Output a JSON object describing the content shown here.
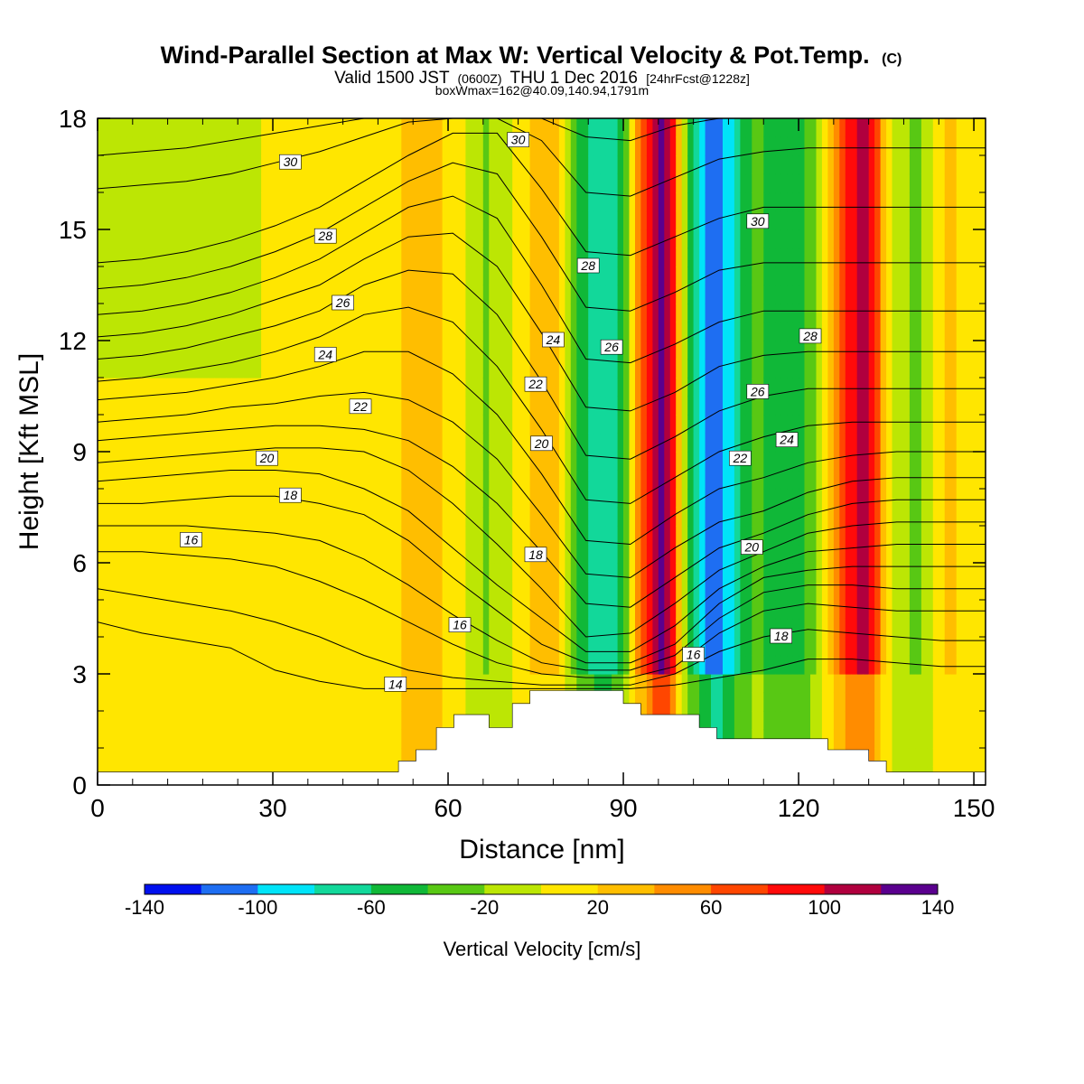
{
  "title": {
    "main": "Wind-Parallel Section at Max W: Vertical Velocity & Pot.Temp.",
    "main_mark": "(C)",
    "valid_prefix": "Valid 1500 JST",
    "valid_z": "(0600Z)",
    "valid_date": "THU 1 Dec 2016",
    "valid_fcst": "[24hrFcst@1228z]",
    "box": "boxWmax=162@40.09,140.94,1791m"
  },
  "chart_data": {
    "type": "heatmap",
    "xlabel": "Distance [nm]",
    "ylabel": "Height [Kft MSL]",
    "xlim": [
      0,
      152
    ],
    "ylim": [
      0,
      18
    ],
    "x_ticks": [
      0,
      30,
      60,
      90,
      120,
      150
    ],
    "y_ticks": [
      0,
      3,
      6,
      9,
      12,
      15,
      18
    ],
    "grid": false,
    "colorbar": {
      "title": "Vertical Velocity [cm/s]",
      "levels": [
        -140,
        -120,
        -100,
        -80,
        -60,
        -40,
        -20,
        0,
        20,
        40,
        60,
        80,
        100,
        120,
        140
      ],
      "tick_labels": [
        "-140",
        "-100",
        "-60",
        "-20",
        "20",
        "60",
        "100",
        "140"
      ],
      "colors": [
        "#0010ee",
        "#1e6ef2",
        "#00e4f8",
        "#12d89a",
        "#10b838",
        "#58c814",
        "#bce604",
        "#ffe600",
        "#ffbe00",
        "#ff8c00",
        "#ff4600",
        "#ff0a0a",
        "#b0003e",
        "#5a008e"
      ]
    },
    "vertical_velocity_columns": [
      {
        "x": 0,
        "w": 5
      },
      {
        "x": 5,
        "w": 5
      },
      {
        "x": 10,
        "w": 6
      },
      {
        "x": 15,
        "w": 5
      },
      {
        "x": 20,
        "w": 5
      },
      {
        "x": 25,
        "w": 4
      },
      {
        "x": 30,
        "w": 3
      },
      {
        "x": 35,
        "w": 2
      },
      {
        "x": 38,
        "w": 12
      },
      {
        "x": 42,
        "w": 5
      },
      {
        "x": 48,
        "w": 8
      },
      {
        "x": 52,
        "w": 20
      },
      {
        "x": 55,
        "w": 30
      },
      {
        "x": 58,
        "w": 22
      },
      {
        "x": 61,
        "w": 12
      },
      {
        "x": 64,
        "w": -5
      },
      {
        "x": 66,
        "w": -25
      },
      {
        "x": 69,
        "w": -10
      },
      {
        "x": 72,
        "w": 5
      },
      {
        "x": 75,
        "w": 25
      },
      {
        "x": 77,
        "w": 40
      },
      {
        "x": 80,
        "w": 5
      },
      {
        "x": 82,
        "w": -40
      },
      {
        "x": 85,
        "w": -75
      },
      {
        "x": 88,
        "w": -80
      },
      {
        "x": 90,
        "w": -40
      },
      {
        "x": 92,
        "w": 30
      },
      {
        "x": 94,
        "w": 80
      },
      {
        "x": 96,
        "w": 130
      },
      {
        "x": 98,
        "w": 105
      },
      {
        "x": 100,
        "w": 10
      },
      {
        "x": 102,
        "w": -60
      },
      {
        "x": 104,
        "w": -100
      },
      {
        "x": 106,
        "w": -125
      },
      {
        "x": 108,
        "w": -90
      },
      {
        "x": 110,
        "w": -55
      },
      {
        "x": 113,
        "w": -30
      },
      {
        "x": 116,
        "w": -55
      },
      {
        "x": 119,
        "w": -60
      },
      {
        "x": 122,
        "w": -35
      },
      {
        "x": 125,
        "w": 10
      },
      {
        "x": 127,
        "w": 60
      },
      {
        "x": 129,
        "w": 95
      },
      {
        "x": 131,
        "w": 110
      },
      {
        "x": 133,
        "w": 75
      },
      {
        "x": 135,
        "w": 20
      },
      {
        "x": 137,
        "w": -10
      },
      {
        "x": 140,
        "w": -30
      },
      {
        "x": 143,
        "w": 5
      },
      {
        "x": 146,
        "w": 25
      },
      {
        "x": 149,
        "w": 10
      },
      {
        "x": 152,
        "w": 5
      }
    ],
    "terrain": [
      {
        "x": 0,
        "h": 0.35
      },
      {
        "x": 51.5,
        "h": 0.35
      },
      {
        "x": 51.5,
        "h": 0.65
      },
      {
        "x": 54.5,
        "h": 0.65
      },
      {
        "x": 54.5,
        "h": 0.95
      },
      {
        "x": 58,
        "h": 0.95
      },
      {
        "x": 58,
        "h": 1.55
      },
      {
        "x": 61,
        "h": 1.55
      },
      {
        "x": 61,
        "h": 1.9
      },
      {
        "x": 67,
        "h": 1.9
      },
      {
        "x": 67,
        "h": 1.55
      },
      {
        "x": 71,
        "h": 1.55
      },
      {
        "x": 71,
        "h": 2.2
      },
      {
        "x": 74,
        "h": 2.2
      },
      {
        "x": 74,
        "h": 2.55
      },
      {
        "x": 90,
        "h": 2.55
      },
      {
        "x": 90,
        "h": 2.2
      },
      {
        "x": 93,
        "h": 2.2
      },
      {
        "x": 93,
        "h": 1.9
      },
      {
        "x": 103,
        "h": 1.9
      },
      {
        "x": 103,
        "h": 1.55
      },
      {
        "x": 106,
        "h": 1.55
      },
      {
        "x": 106,
        "h": 1.25
      },
      {
        "x": 125,
        "h": 1.25
      },
      {
        "x": 125,
        "h": 0.95
      },
      {
        "x": 132,
        "h": 0.95
      },
      {
        "x": 132,
        "h": 0.65
      },
      {
        "x": 135,
        "h": 0.65
      },
      {
        "x": 135,
        "h": 0.35
      },
      {
        "x": 152,
        "h": 0.35
      }
    ],
    "isentropes": [
      {
        "value": 14,
        "heights": [
          4.4,
          4.1,
          3.9,
          3.7,
          3.1,
          2.8,
          2.6,
          2.6,
          2.6,
          2.6,
          2.6,
          2.6,
          2.6,
          2.7,
          2.9,
          3.1,
          3.4,
          3.4,
          3.3,
          3.2,
          3.2
        ],
        "label": "14",
        "lx": 51,
        "ly": 2.7
      },
      {
        "value": 15,
        "heights": [
          5.3,
          5.1,
          4.9,
          4.7,
          4.4,
          4.0,
          3.5,
          3.1,
          2.9,
          2.8,
          2.7,
          2.7,
          2.7,
          3.0,
          3.6,
          4.0,
          4.2,
          4.1,
          4.0,
          3.9,
          3.9
        ]
      },
      {
        "value": 16,
        "heights": [
          6.3,
          6.3,
          6.2,
          6.1,
          5.9,
          5.5,
          5.0,
          4.4,
          3.8,
          3.3,
          3.0,
          2.9,
          2.9,
          3.2,
          4.1,
          4.7,
          4.9,
          4.8,
          4.7,
          4.7,
          4.7
        ],
        "label": "16",
        "lx": 62,
        "ly": 4.3
      },
      {
        "value": 17,
        "heights": [
          7.0,
          7.0,
          7.0,
          6.9,
          6.8,
          6.6,
          6.1,
          5.4,
          4.6,
          3.9,
          3.3,
          3.1,
          3.1,
          3.5,
          4.5,
          5.2,
          5.4,
          5.4,
          5.3,
          5.3,
          5.3
        ]
      },
      {
        "value": 18,
        "heights": [
          7.6,
          7.6,
          7.7,
          7.8,
          7.8,
          7.6,
          7.3,
          6.6,
          5.6,
          4.7,
          3.8,
          3.3,
          3.3,
          3.8,
          4.9,
          5.6,
          5.8,
          5.9,
          5.9,
          5.9,
          5.9
        ],
        "label": "18",
        "lx": 33,
        "ly": 7.8
      },
      {
        "value": 19,
        "heights": [
          8.2,
          8.3,
          8.4,
          8.5,
          8.5,
          8.4,
          8.0,
          7.4,
          6.4,
          5.4,
          4.5,
          3.6,
          3.6,
          4.3,
          5.3,
          5.9,
          6.3,
          6.4,
          6.5,
          6.5,
          6.5
        ]
      },
      {
        "value": 20,
        "heights": [
          8.7,
          8.8,
          8.9,
          9.0,
          9.1,
          9.1,
          9.0,
          8.5,
          7.6,
          6.5,
          5.3,
          4.0,
          4.1,
          4.9,
          5.8,
          6.3,
          6.8,
          7.0,
          7.1,
          7.1,
          7.1
        ],
        "label": "20",
        "lx": 29,
        "ly": 8.8
      },
      {
        "value": 21,
        "heights": [
          9.3,
          9.4,
          9.5,
          9.6,
          9.7,
          9.7,
          9.6,
          9.3,
          8.6,
          7.6,
          6.3,
          4.9,
          4.8,
          5.6,
          6.4,
          6.8,
          7.3,
          7.6,
          7.7,
          7.7,
          7.7
        ]
      },
      {
        "value": 22,
        "heights": [
          9.8,
          9.9,
          10.0,
          10.2,
          10.3,
          10.5,
          10.6,
          10.4,
          9.8,
          8.8,
          7.3,
          5.7,
          5.6,
          6.4,
          7.1,
          7.4,
          7.9,
          8.2,
          8.3,
          8.3,
          8.3
        ],
        "label": "22",
        "lx": 45,
        "ly": 10.2
      },
      {
        "value": 23,
        "heights": [
          10.4,
          10.5,
          10.6,
          10.8,
          11.0,
          11.3,
          11.7,
          11.7,
          11.1,
          10.0,
          8.4,
          6.6,
          6.5,
          7.3,
          8.0,
          8.3,
          8.7,
          8.9,
          9.0,
          9.0,
          9.0
        ]
      },
      {
        "value": 24,
        "heights": [
          10.9,
          11.0,
          11.2,
          11.4,
          11.7,
          12.1,
          12.7,
          12.9,
          12.5,
          11.3,
          9.6,
          7.7,
          7.6,
          8.3,
          9.0,
          9.4,
          9.7,
          9.8,
          9.8,
          9.8,
          9.8
        ],
        "label": "24",
        "lx": 39,
        "ly": 11.6
      },
      {
        "value": 25,
        "heights": [
          11.5,
          11.6,
          11.8,
          12.1,
          12.4,
          12.8,
          13.5,
          13.9,
          13.8,
          12.7,
          10.9,
          8.9,
          8.8,
          9.4,
          10.1,
          10.5,
          10.7,
          10.7,
          10.7,
          10.7,
          10.7
        ]
      },
      {
        "value": 26,
        "heights": [
          12.1,
          12.2,
          12.4,
          12.7,
          13.1,
          13.5,
          14.2,
          14.8,
          14.9,
          14.0,
          12.2,
          10.2,
          10.1,
          10.6,
          11.3,
          11.6,
          11.7,
          11.7,
          11.7,
          11.7,
          11.7
        ],
        "label": "26",
        "lx": 42,
        "ly": 13.0
      },
      {
        "value": 27,
        "heights": [
          12.7,
          12.8,
          13.0,
          13.3,
          13.7,
          14.2,
          14.9,
          15.6,
          15.9,
          15.3,
          13.5,
          11.5,
          11.4,
          11.9,
          12.5,
          12.8,
          12.8,
          12.8,
          12.8,
          12.8,
          12.8
        ]
      },
      {
        "value": 28,
        "heights": [
          13.4,
          13.5,
          13.7,
          14.0,
          14.4,
          14.9,
          15.6,
          16.3,
          16.8,
          16.5,
          14.8,
          12.9,
          12.8,
          13.3,
          13.9,
          14.1,
          14.1,
          14.1,
          14.1,
          14.1,
          14.1
        ],
        "label": "28",
        "lx": 39,
        "ly": 14.8
      },
      {
        "value": 29,
        "heights": [
          14.1,
          14.2,
          14.4,
          14.7,
          15.1,
          15.6,
          16.3,
          17.0,
          17.6,
          17.6,
          16.1,
          14.4,
          14.3,
          14.8,
          15.3,
          15.6,
          15.6,
          15.6,
          15.6,
          15.6,
          15.6
        ]
      },
      {
        "value": 30,
        "heights": [
          16.1,
          16.2,
          16.3,
          16.5,
          16.8,
          17.1,
          17.5,
          17.9,
          18.0,
          18.0,
          17.4,
          16.0,
          15.9,
          16.4,
          16.9,
          17.1,
          17.2,
          17.2,
          17.2,
          17.2,
          17.2
        ],
        "label": "30",
        "lx": 33,
        "ly": 16.8
      },
      {
        "value": 31,
        "heights": [
          17.0,
          17.1,
          17.2,
          17.4,
          17.6,
          17.8,
          18.0,
          18.0,
          18.0,
          18.0,
          18.0,
          17.5,
          17.4,
          17.8,
          18.0,
          18.0,
          18.0,
          18.0,
          18.0,
          18.0,
          18.0
        ]
      }
    ],
    "isentrope_x": [
      0,
      7.6,
      15.2,
      22.8,
      30.4,
      38.0,
      45.6,
      53.2,
      60.8,
      68.4,
      76.0,
      83.6,
      91.2,
      98.8,
      106.4,
      114.0,
      121.6,
      129.2,
      136.8,
      144.4,
      152
    ],
    "isentrope_labels_extra": [
      {
        "text": "30",
        "lx": 72,
        "ly": 17.4
      },
      {
        "text": "28",
        "lx": 84,
        "ly": 14.0
      },
      {
        "text": "26",
        "lx": 88,
        "ly": 11.8
      },
      {
        "text": "24",
        "lx": 78,
        "ly": 12.0
      },
      {
        "text": "22",
        "lx": 75,
        "ly": 10.8
      },
      {
        "text": "20",
        "lx": 76,
        "ly": 9.2
      },
      {
        "text": "18",
        "lx": 75,
        "ly": 6.2
      },
      {
        "text": "16",
        "lx": 102,
        "ly": 3.5
      },
      {
        "text": "30",
        "lx": 113,
        "ly": 15.2
      },
      {
        "text": "28",
        "lx": 122,
        "ly": 12.1
      },
      {
        "text": "26",
        "lx": 113,
        "ly": 10.6
      },
      {
        "text": "24",
        "lx": 118,
        "ly": 9.3
      },
      {
        "text": "22",
        "lx": 110,
        "ly": 8.8
      },
      {
        "text": "20",
        "lx": 112,
        "ly": 6.4
      },
      {
        "text": "18",
        "lx": 117,
        "ly": 4.0
      },
      {
        "text": "16",
        "lx": 16,
        "ly": 6.6
      }
    ]
  }
}
